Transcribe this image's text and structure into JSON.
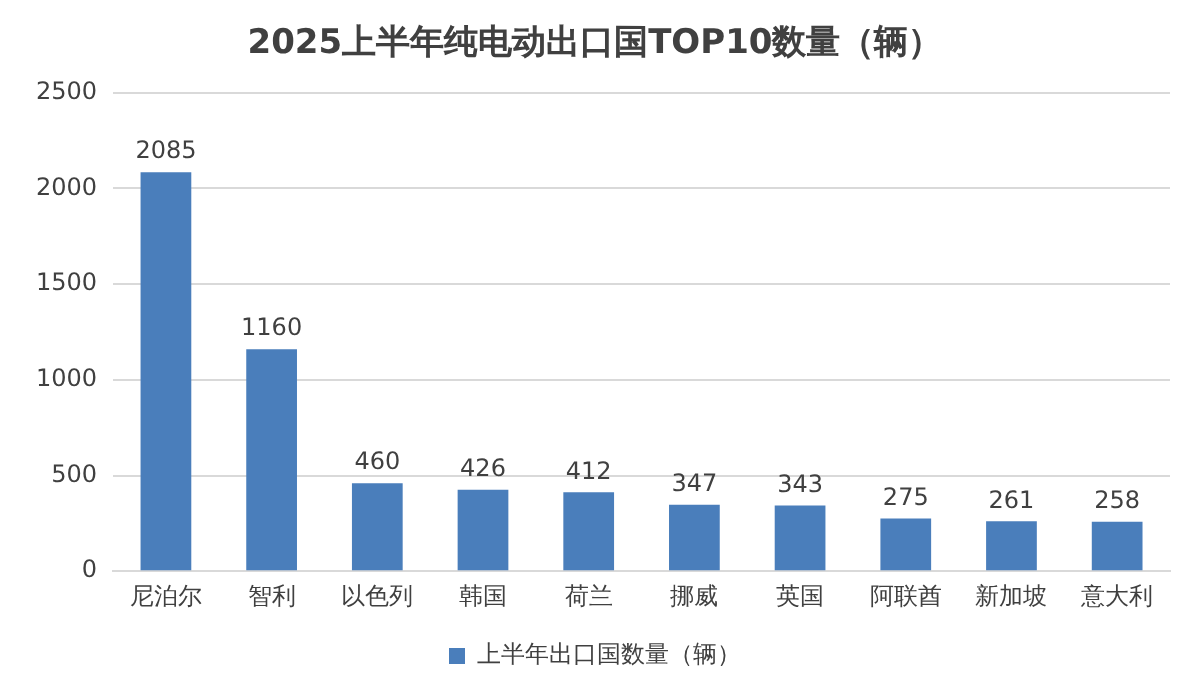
{
  "chart_data": {
    "type": "bar",
    "title": "2025上半年纯电动出口国TOP10数量（辆）",
    "categories": [
      "尼泊尔",
      "智利",
      "以色列",
      "韩国",
      "荷兰",
      "挪威",
      "英国",
      "阿联酋",
      "新加坡",
      "意大利"
    ],
    "series": [
      {
        "name": "上半年出口国数量（辆）",
        "color": "#4a7ebb",
        "values": [
          2085,
          1160,
          460,
          426,
          412,
          347,
          343,
          275,
          261,
          258
        ]
      }
    ],
    "ylim": [
      0,
      2500
    ],
    "yticks": [
      0,
      500,
      1000,
      1500,
      2000,
      2500
    ],
    "grid": "y",
    "legend": "bottom",
    "data_labels": true
  }
}
